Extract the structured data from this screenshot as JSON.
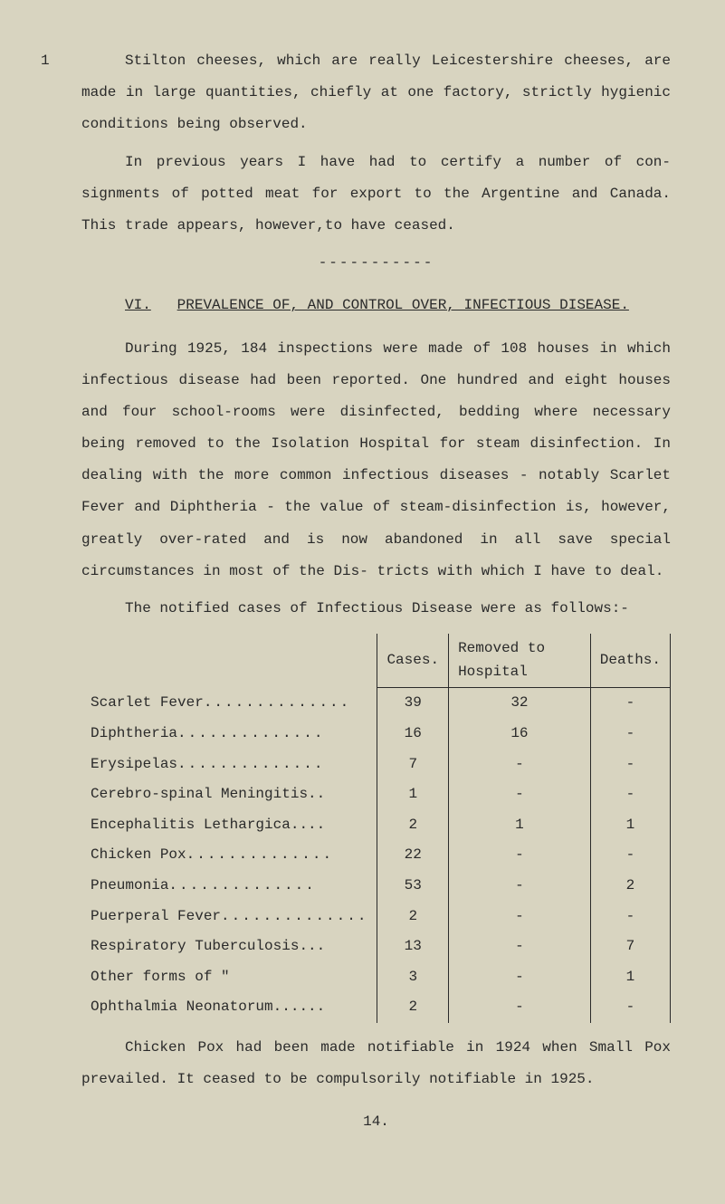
{
  "page_marker": "1",
  "para1": "Stilton cheeses, which are really Leicestershire cheeses, are made in large quantities, chiefly at one factory, strictly hygienic conditions being observed.",
  "para2": "In previous years I have had to certify a number of con- signments of potted meat for export to the Argentine and Canada. This trade appears, however,to have ceased.",
  "dashes": "-----------",
  "section_roman": "VI.",
  "section_title": "PREVALENCE OF, AND CONTROL OVER, INFECTIOUS DISEASE.",
  "para3": "During 1925, 184 inspections were made of 108 houses in which infectious disease had been reported.  One hundred and eight houses and four school-rooms were disinfected, bedding where necessary being removed to the Isolation Hospital for steam disinfection.  In dealing with the more common infectious diseases - notably Scarlet Fever and Diphtheria - the value of steam-disinfection is, however, greatly over-rated and is now abandoned in all save special circumstances in most of the Dis- tricts with which I have to deal.",
  "para4": "The notified cases of Infectious Disease were as follows:-",
  "table": {
    "headers": [
      "",
      "Cases.",
      "Removed to Hospital",
      "Deaths."
    ],
    "rows": [
      {
        "label": "Scarlet Fever",
        "cases": "39",
        "removed": "32",
        "deaths": "-"
      },
      {
        "label": "Diphtheria",
        "cases": "16",
        "removed": "16",
        "deaths": "-"
      },
      {
        "label": "Erysipelas",
        "cases": "7",
        "removed": "-",
        "deaths": "-"
      },
      {
        "label": "Cerebro-spinal Meningitis..",
        "cases": "1",
        "removed": "-",
        "deaths": "-"
      },
      {
        "label": "Encephalitis Lethargica....",
        "cases": "2",
        "removed": "1",
        "deaths": "1"
      },
      {
        "label": "Chicken Pox",
        "cases": "22",
        "removed": "-",
        "deaths": "-"
      },
      {
        "label": "Pneumonia",
        "cases": "53",
        "removed": "-",
        "deaths": "2"
      },
      {
        "label": "Puerperal Fever",
        "cases": "2",
        "removed": "-",
        "deaths": "-"
      },
      {
        "label": "Respiratory Tuberculosis...",
        "cases": "13",
        "removed": "-",
        "deaths": "7"
      },
      {
        "label": "Other forms of     \"",
        "cases": "3",
        "removed": "-",
        "deaths": "1"
      },
      {
        "label": "Ophthalmia Neonatorum......",
        "cases": "2",
        "removed": "-",
        "deaths": "-"
      }
    ]
  },
  "para5": "Chicken  Pox had been made notifiable in 1924 when Small Pox prevailed.  It ceased to be compulsorily notifiable in 1925.",
  "pagenum": "14.",
  "colors": {
    "background": "#d8d4c0",
    "text": "#2a2a2a",
    "border": "#2a2a2a"
  }
}
